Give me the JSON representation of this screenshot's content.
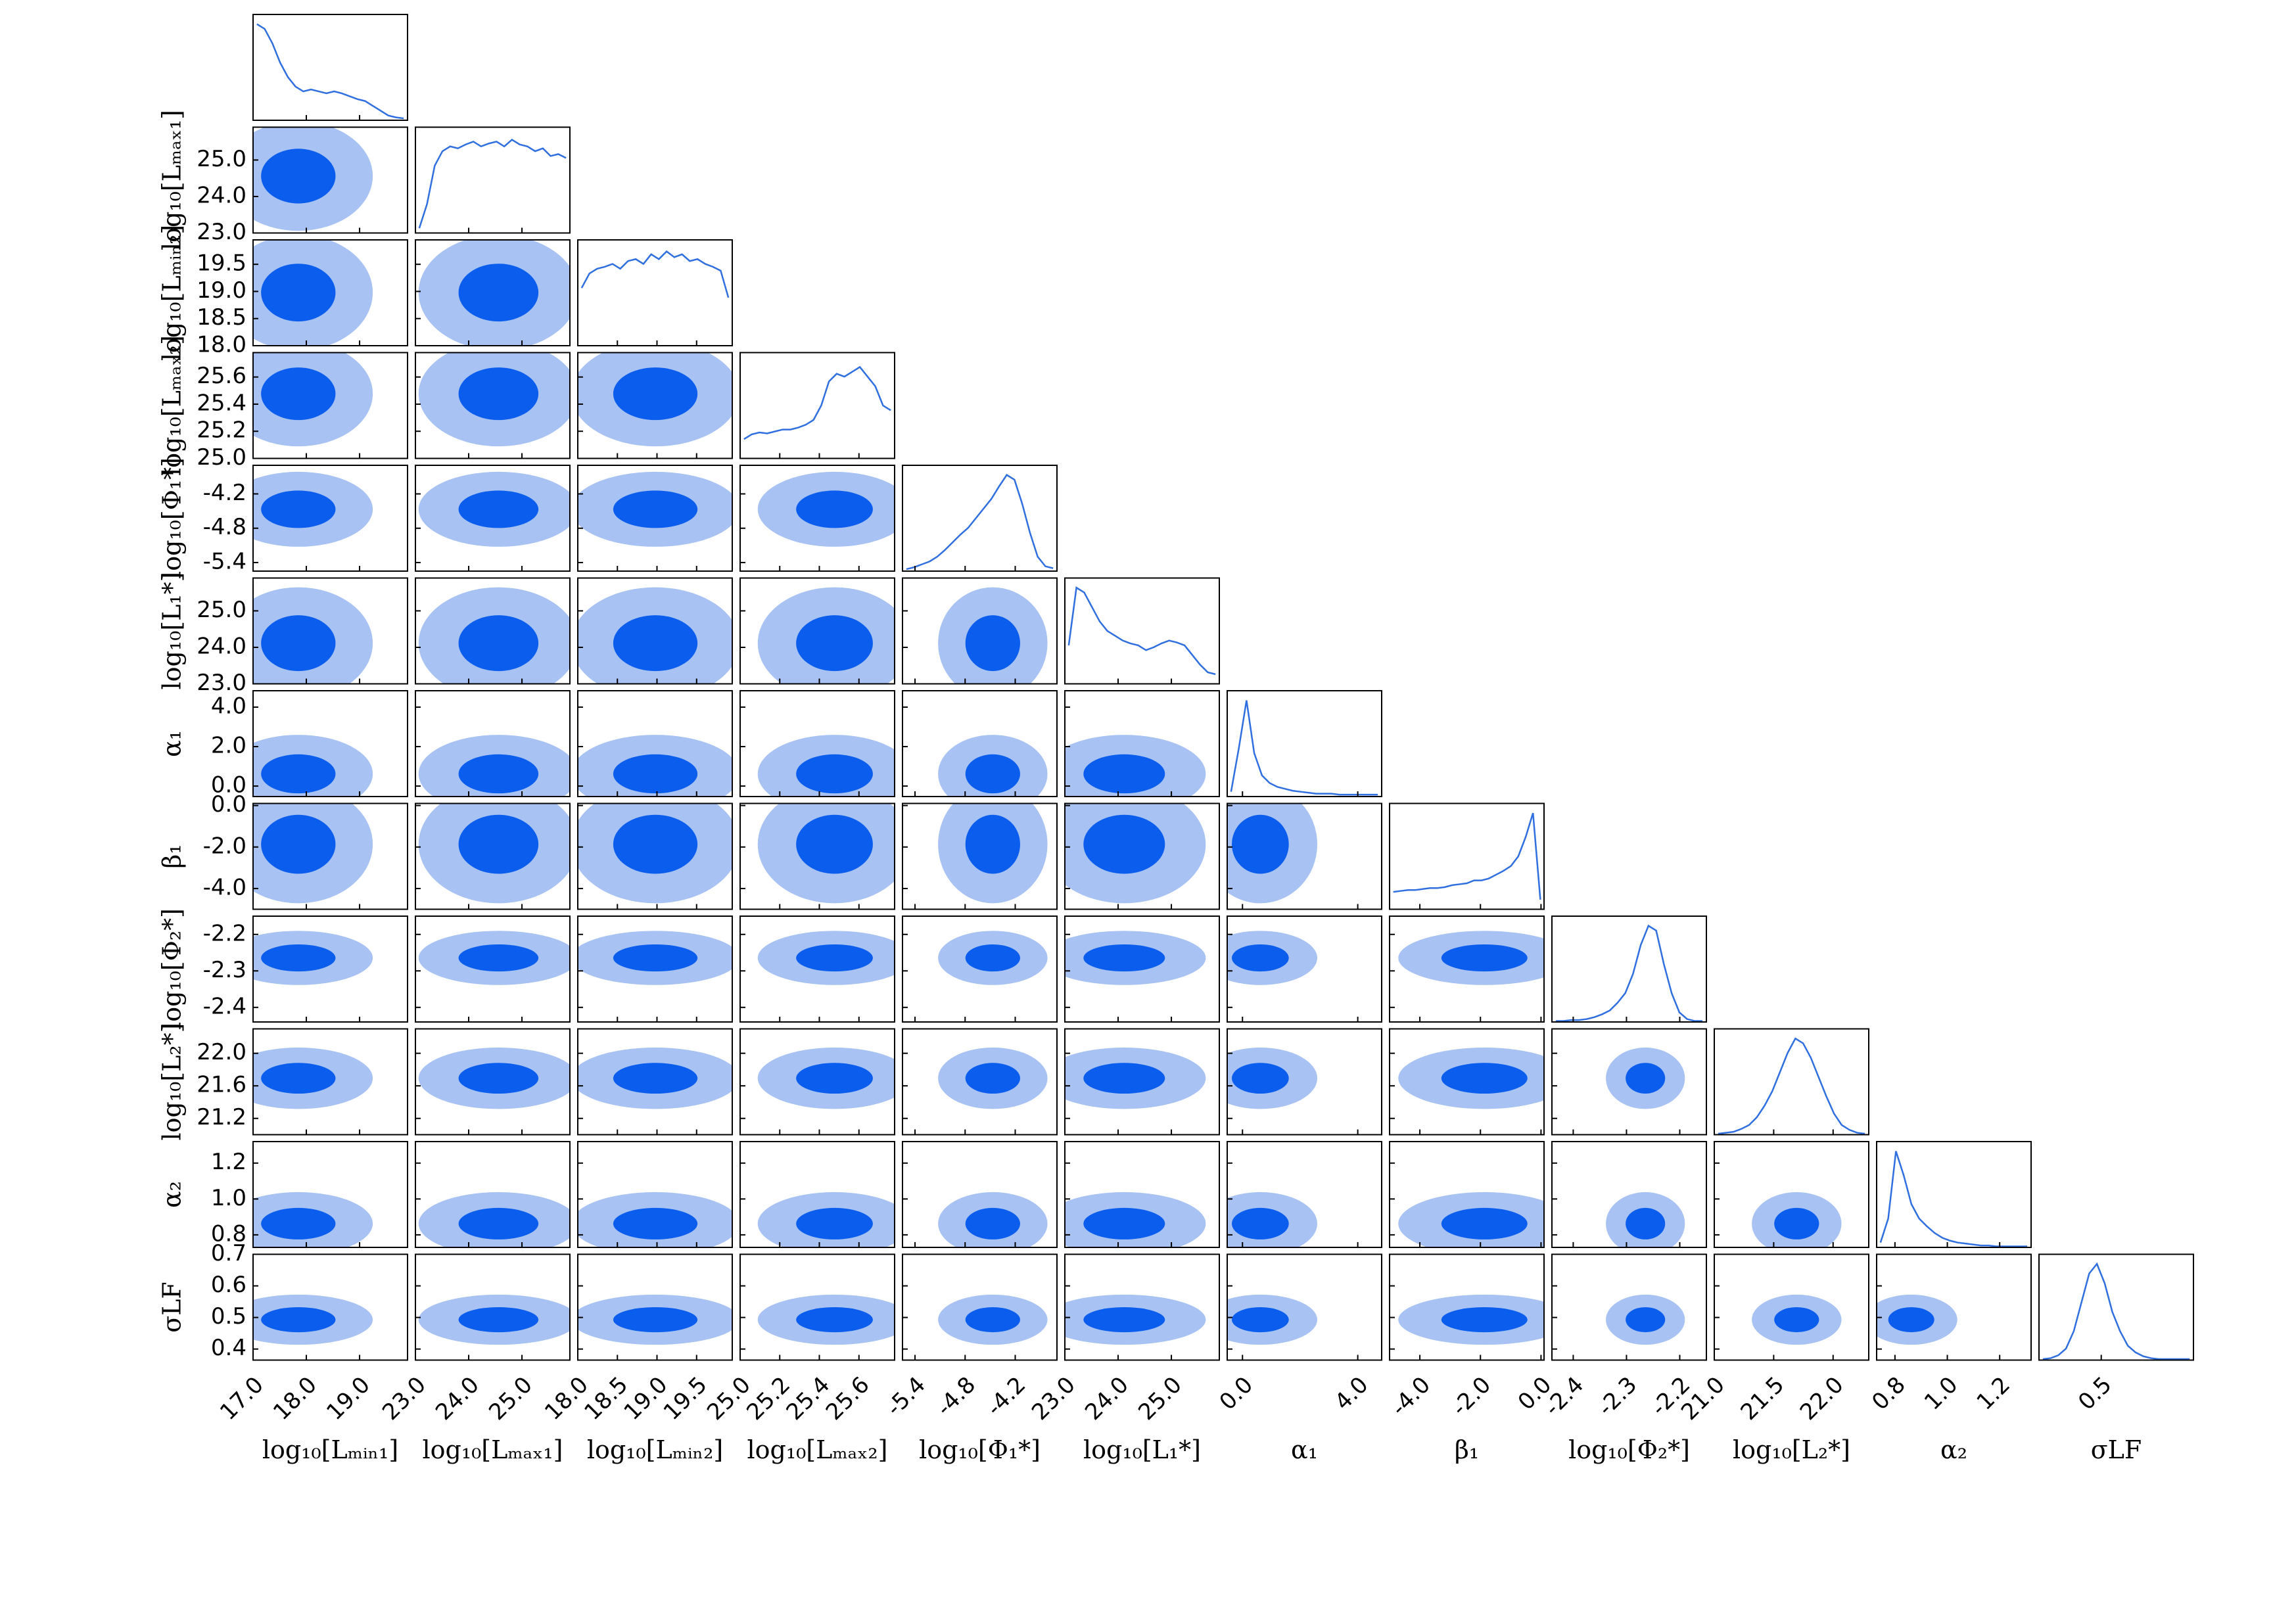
{
  "chart_data": {
    "type": "corner",
    "color": "#0a5ded",
    "light_color": "#a7c2f3",
    "line_color": "#2f6fe0",
    "params": [
      {
        "label": "log₁₀[Lₘᵢₙ₁]",
        "lim": [
          17.0,
          19.9
        ],
        "xticks": [
          {
            "value": 17,
            "label": "17.0"
          },
          {
            "value": 18,
            "label": "18.0"
          },
          {
            "value": 19,
            "label": "19.0"
          }
        ],
        "hist": [
          1.0,
          0.95,
          0.8,
          0.6,
          0.45,
          0.35,
          0.3,
          0.32,
          0.3,
          0.28,
          0.3,
          0.28,
          0.25,
          0.22,
          0.2,
          0.15,
          0.1,
          0.05,
          0.03,
          0.02
        ]
      },
      {
        "label": "log₁₀[Lₘₐₓ₁]",
        "lim": [
          23.0,
          25.9
        ],
        "xticks": [
          {
            "value": 23,
            "label": "23.0"
          },
          {
            "value": 24,
            "label": "24.0"
          },
          {
            "value": 25,
            "label": "25.0"
          }
        ],
        "yticks": [
          {
            "value": 23,
            "label": "23.0"
          },
          {
            "value": 24,
            "label": "24.0"
          },
          {
            "value": 25,
            "label": "25.0"
          }
        ],
        "hist": [
          0.05,
          0.3,
          0.7,
          0.85,
          0.9,
          0.88,
          0.92,
          0.95,
          0.9,
          0.93,
          0.95,
          0.9,
          0.97,
          0.92,
          0.9,
          0.85,
          0.88,
          0.8,
          0.82,
          0.78
        ]
      },
      {
        "label": "log₁₀[Lₘᵢₙ₂]",
        "lim": [
          18.0,
          19.95
        ],
        "xticks": [
          {
            "value": 18,
            "label": "18.0"
          },
          18.5,
          {
            "value": 19,
            "label": "19.0"
          },
          19.5
        ],
        "yticks": [
          {
            "value": 18,
            "label": "18.0"
          },
          18.5,
          {
            "value": 19,
            "label": "19.0"
          },
          19.5
        ],
        "hist": [
          0.6,
          0.75,
          0.8,
          0.82,
          0.85,
          0.8,
          0.88,
          0.9,
          0.85,
          0.95,
          0.9,
          0.98,
          0.92,
          0.95,
          0.88,
          0.9,
          0.85,
          0.82,
          0.78,
          0.5
        ]
      },
      {
        "label": "log₁₀[Lₘₐₓ₂]",
        "lim": [
          25.0,
          25.78
        ],
        "xticks": [
          {
            "value": 25,
            "label": "25.0"
          },
          25.2,
          25.4,
          25.6
        ],
        "yticks": [
          {
            "value": 25,
            "label": "25.0"
          },
          25.2,
          25.4,
          25.6
        ],
        "hist": [
          0.2,
          0.25,
          0.27,
          0.26,
          0.28,
          0.3,
          0.3,
          0.32,
          0.35,
          0.4,
          0.55,
          0.8,
          0.88,
          0.85,
          0.9,
          0.95,
          0.85,
          0.75,
          0.55,
          0.5
        ]
      },
      {
        "label": "log₁₀[Φ₁*]",
        "lim": [
          -5.55,
          -3.7
        ],
        "xticks": [
          -5.4,
          -4.8,
          -4.2
        ],
        "yticks": [
          -5.4,
          -4.8,
          -4.2
        ],
        "hist": [
          0.02,
          0.04,
          0.07,
          0.1,
          0.15,
          0.22,
          0.3,
          0.38,
          0.45,
          0.55,
          0.65,
          0.75,
          0.88,
          1.0,
          0.95,
          0.7,
          0.4,
          0.15,
          0.05,
          0.03
        ]
      },
      {
        "label": "log₁₀[L₁*]",
        "lim": [
          23.0,
          25.9
        ],
        "xticks": [
          {
            "value": 23,
            "label": "23.0"
          },
          {
            "value": 24,
            "label": "24.0"
          },
          {
            "value": 25,
            "label": "25.0"
          }
        ],
        "yticks": [
          {
            "value": 23,
            "label": "23.0"
          },
          {
            "value": 24,
            "label": "24.0"
          },
          {
            "value": 25,
            "label": "25.0"
          }
        ],
        "hist": [
          0.4,
          1.0,
          0.95,
          0.8,
          0.65,
          0.55,
          0.5,
          0.45,
          0.42,
          0.4,
          0.35,
          0.38,
          0.42,
          0.45,
          0.43,
          0.4,
          0.3,
          0.2,
          0.12,
          0.1
        ]
      },
      {
        "label": "α₁",
        "lim": [
          -0.53,
          4.83
        ],
        "xticks": [
          {
            "value": 0,
            "label": "0.0"
          },
          {
            "value": 4,
            "label": "4.0"
          }
        ],
        "yticks": [
          {
            "value": 0,
            "label": "0.0"
          },
          {
            "value": 2,
            "label": "2.0"
          },
          {
            "value": 4,
            "label": "4.0"
          }
        ],
        "hist": [
          0.05,
          0.5,
          1.0,
          0.45,
          0.22,
          0.14,
          0.1,
          0.08,
          0.06,
          0.05,
          0.04,
          0.03,
          0.03,
          0.03,
          0.02,
          0.02,
          0.02,
          0.02,
          0.02,
          0.02
        ]
      },
      {
        "label": "β₁",
        "lim": [
          -5.0,
          0.1
        ],
        "xticks": [
          {
            "value": -4,
            "label": "-4.0"
          },
          {
            "value": -2,
            "label": "-2.0"
          },
          {
            "value": 0,
            "label": "0.0"
          }
        ],
        "yticks": [
          {
            "value": -4,
            "label": "-4.0"
          },
          {
            "value": -2,
            "label": "-2.0"
          },
          {
            "value": 0,
            "label": "0.0"
          }
        ],
        "hist": [
          0.18,
          0.19,
          0.2,
          0.2,
          0.21,
          0.22,
          0.22,
          0.23,
          0.25,
          0.26,
          0.27,
          0.3,
          0.3,
          0.32,
          0.36,
          0.4,
          0.45,
          0.55,
          0.75,
          1.0,
          0.1
        ]
      },
      {
        "label": "log₁₀[Φ₂*]",
        "lim": [
          -2.44,
          -2.15
        ],
        "xticks": [
          -2.4,
          -2.3,
          -2.2
        ],
        "yticks": [
          -2.4,
          -2.3,
          -2.2
        ],
        "hist": [
          0.01,
          0.01,
          0.02,
          0.02,
          0.03,
          0.05,
          0.08,
          0.12,
          0.2,
          0.3,
          0.5,
          0.8,
          1.0,
          0.95,
          0.6,
          0.3,
          0.1,
          0.03,
          0.01,
          0.01
        ]
      },
      {
        "label": "log₁₀[L₂*]",
        "lim": [
          21.0,
          22.3
        ],
        "xticks": [
          {
            "value": 21,
            "label": "21.0"
          },
          21.5,
          {
            "value": 22,
            "label": "22.0"
          }
        ],
        "yticks": [
          21.2,
          21.6,
          {
            "value": 22,
            "label": "22.0"
          }
        ],
        "hist": [
          0.01,
          0.02,
          0.03,
          0.06,
          0.1,
          0.18,
          0.3,
          0.45,
          0.65,
          0.85,
          1.0,
          0.95,
          0.8,
          0.6,
          0.4,
          0.22,
          0.1,
          0.05,
          0.02,
          0.01
        ]
      },
      {
        "label": "α₂",
        "lim": [
          0.73,
          1.32
        ],
        "xticks": [
          0.8,
          {
            "value": 1,
            "label": "1.0"
          },
          1.2
        ],
        "yticks": [
          0.8,
          {
            "value": 1,
            "label": "1.0"
          },
          1.2
        ],
        "hist": [
          0.05,
          0.3,
          1.0,
          0.75,
          0.45,
          0.3,
          0.22,
          0.15,
          0.1,
          0.07,
          0.05,
          0.04,
          0.03,
          0.02,
          0.02,
          0.01,
          0.01,
          0.01,
          0.01,
          0.01
        ]
      },
      {
        "label": "σLF",
        "lim": [
          0.365,
          0.7
        ],
        "xticks": [
          0.5
        ],
        "yticks": [
          0.4,
          0.5,
          0.6,
          0.7
        ],
        "hist": [
          0.01,
          0.02,
          0.05,
          0.12,
          0.3,
          0.6,
          0.9,
          1.0,
          0.8,
          0.5,
          0.3,
          0.15,
          0.08,
          0.04,
          0.02,
          0.01,
          0.01,
          0.01,
          0.01,
          0.01
        ]
      }
    ]
  }
}
